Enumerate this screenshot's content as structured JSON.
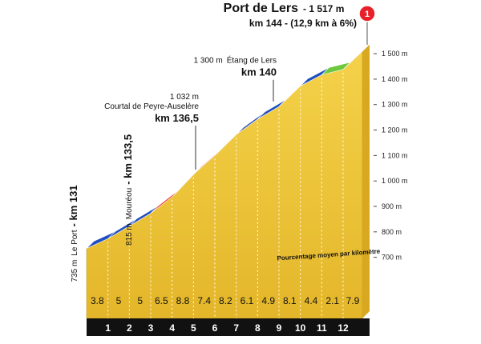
{
  "chart_data": {
    "type": "profile",
    "title": "Port de Lers",
    "summit_label": "- 1 517 m",
    "subtitle": "km 144 - (12,9 km à 6%)",
    "category": "1",
    "values_label": "Pourcentage moyen par kilomètre",
    "xlim": [
      0,
      12.9
    ],
    "xticks": [
      1,
      2,
      3,
      4,
      5,
      6,
      7,
      8,
      9,
      10,
      11,
      12
    ],
    "values": [
      3.8,
      5,
      5,
      6.5,
      8.8,
      7.4,
      8.2,
      6.1,
      4.9,
      8.1,
      4.4,
      2.1,
      7.9
    ],
    "colors": [
      "#2050c0",
      "#2050c0",
      "#2050c0",
      "#e8202a",
      "#e8202a",
      "#e8202a",
      "#e8202a",
      "#2050c0",
      "#2050c0",
      "#e8202a",
      "#2050c0",
      "#6cc83c",
      "#e8202a"
    ],
    "ylim": [
      460,
      1560
    ],
    "yticks": [
      {
        "value": 700,
        "label": "700 m"
      },
      {
        "value": 800,
        "label": "800 m"
      },
      {
        "value": 900,
        "label": "900 m"
      },
      {
        "value": 1000,
        "label": "1 000 m"
      },
      {
        "value": 1100,
        "label": "1 100 m"
      },
      {
        "value": 1200,
        "label": "1 200 m"
      },
      {
        "value": 1300,
        "label": "1 300 m"
      },
      {
        "value": 1400,
        "label": "1 400 m"
      },
      {
        "value": 1500,
        "label": "1 500 m"
      }
    ],
    "annotations": [
      {
        "elevation": 735,
        "elevation_label": "735 m",
        "name": "Le Port",
        "km": "- km 131"
      },
      {
        "elevation": 815,
        "elevation_label": "815 m",
        "name": "Mouréou",
        "km": "- km 133,5"
      },
      {
        "elevation": 1032,
        "elevation_label": "1 032 m",
        "name": "Courtal de Peyre-Auselère",
        "km": "km 136,5"
      },
      {
        "elevation": 1300,
        "elevation_label": "1 300 m",
        "name": "Étang de Lers",
        "km": "km 140"
      }
    ]
  }
}
